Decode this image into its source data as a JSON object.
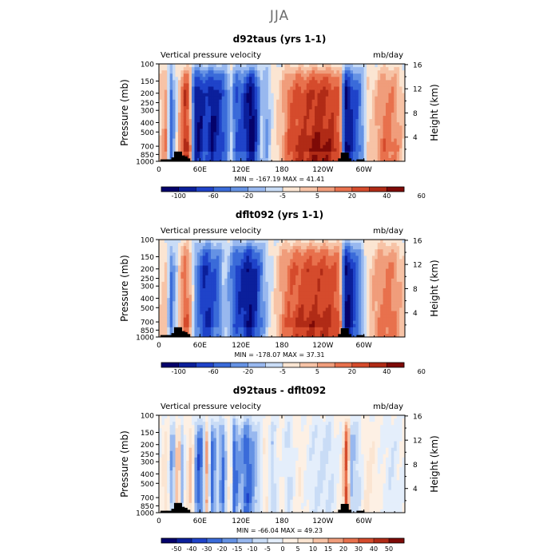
{
  "page": {
    "title": "JJA"
  },
  "colors": {
    "anomaly_palette": [
      "#05026b",
      "#0b1f9b",
      "#1f43c9",
      "#3a6bd9",
      "#6592e4",
      "#98b8ef",
      "#c9dcf6",
      "#fbe5d2",
      "#f7c3a6",
      "#f09d7b",
      "#e8714d",
      "#d54b2c",
      "#b02b16",
      "#7e0a07"
    ],
    "diff_palette": [
      "#05026b",
      "#0b1f9b",
      "#1f43c9",
      "#3a6bd9",
      "#6592e4",
      "#98b8ef",
      "#c9dcf6",
      "#e4eefb",
      "#fdf0e4",
      "#fbe5d2",
      "#f7c3a6",
      "#f09d7b",
      "#e8714d",
      "#d54b2c",
      "#b02b16",
      "#7e0a07"
    ],
    "topography": "#000000"
  },
  "chart_data": [
    {
      "type": "heatmap",
      "title": "d92taus (yrs 1-1)",
      "left_label": "Vertical pressure velocity",
      "units": "mb/day",
      "ylabel": "Pressure (mb)",
      "ylabel_right": "Height (km)",
      "x_range": [
        0,
        360
      ],
      "x_ticks": [
        {
          "lon": 0,
          "label": "0"
        },
        {
          "lon": 60,
          "label": "60E"
        },
        {
          "lon": 120,
          "label": "120E"
        },
        {
          "lon": 180,
          "label": "180"
        },
        {
          "lon": 240,
          "label": "120W"
        },
        {
          "lon": 300,
          "label": "60W"
        }
      ],
      "y_range_mb": [
        1000,
        100
      ],
      "y_ticks": [
        100,
        150,
        200,
        250,
        300,
        400,
        500,
        700,
        850,
        1000
      ],
      "height_ticks": [
        {
          "km": 16,
          "label": "16"
        },
        {
          "km": 12,
          "label": "12"
        },
        {
          "km": 8,
          "label": "8"
        },
        {
          "km": 4,
          "label": "4"
        }
      ],
      "stats": "MIN = -167.19   MAX =  41.41",
      "colorbar_labels": [
        "-100",
        "-60",
        "-20",
        "-5",
        "5",
        "20",
        "40",
        "60"
      ],
      "palette": "anomaly_palette",
      "lon_profile": [
        [
          0,
          0.1
        ],
        [
          10,
          0.35
        ],
        [
          18,
          -0.5
        ],
        [
          25,
          -0.1
        ],
        [
          32,
          0.4
        ],
        [
          40,
          0.75
        ],
        [
          46,
          0.3
        ],
        [
          52,
          -0.75
        ],
        [
          60,
          -0.85
        ],
        [
          68,
          -0.6
        ],
        [
          78,
          -0.85
        ],
        [
          88,
          -0.7
        ],
        [
          100,
          -0.45
        ],
        [
          106,
          -0.15
        ],
        [
          112,
          -0.6
        ],
        [
          120,
          -0.55
        ],
        [
          128,
          -0.75
        ],
        [
          136,
          -0.95
        ],
        [
          145,
          -0.55
        ],
        [
          150,
          -0.15
        ],
        [
          158,
          -0.3
        ],
        [
          165,
          0.0
        ],
        [
          172,
          0.1
        ],
        [
          180,
          0.25
        ],
        [
          190,
          0.5
        ],
        [
          200,
          0.6
        ],
        [
          215,
          0.65
        ],
        [
          230,
          0.75
        ],
        [
          250,
          0.7
        ],
        [
          265,
          0.55
        ],
        [
          272,
          -0.9
        ],
        [
          280,
          -0.75
        ],
        [
          290,
          -0.55
        ],
        [
          298,
          -0.3
        ],
        [
          305,
          0.1
        ],
        [
          318,
          0.25
        ],
        [
          330,
          0.45
        ],
        [
          345,
          0.4
        ],
        [
          360,
          0.1
        ]
      ],
      "topography": [
        [
          8,
          0.02
        ],
        [
          16,
          0.02
        ],
        [
          24,
          0.04
        ],
        [
          28,
          0.1
        ],
        [
          32,
          0.06
        ],
        [
          36,
          0.05
        ],
        [
          40,
          0.03
        ],
        [
          268,
          0.03
        ],
        [
          272,
          0.09
        ],
        [
          276,
          0.03
        ],
        [
          295,
          0.02
        ]
      ]
    },
    {
      "type": "heatmap",
      "title": "dflt092 (yrs 1-1)",
      "left_label": "Vertical pressure velocity",
      "units": "mb/day",
      "ylabel": "Pressure (mb)",
      "ylabel_right": "Height (km)",
      "x_range": [
        0,
        360
      ],
      "x_ticks": [
        {
          "lon": 0,
          "label": "0"
        },
        {
          "lon": 60,
          "label": "60E"
        },
        {
          "lon": 120,
          "label": "120E"
        },
        {
          "lon": 180,
          "label": "180"
        },
        {
          "lon": 240,
          "label": "120W"
        },
        {
          "lon": 300,
          "label": "60W"
        }
      ],
      "y_range_mb": [
        1000,
        100
      ],
      "y_ticks": [
        100,
        150,
        200,
        250,
        300,
        400,
        500,
        700,
        850,
        1000
      ],
      "height_ticks": [
        {
          "km": 16,
          "label": "16"
        },
        {
          "km": 12,
          "label": "12"
        },
        {
          "km": 8,
          "label": "8"
        },
        {
          "km": 4,
          "label": "4"
        }
      ],
      "stats": "MIN = -178.07   MAX =  37.31",
      "colorbar_labels": [
        "-100",
        "-60",
        "-20",
        "-5",
        "5",
        "20",
        "40",
        "60"
      ],
      "palette": "anomaly_palette",
      "lon_profile": [
        [
          0,
          0.1
        ],
        [
          10,
          0.2
        ],
        [
          18,
          -0.45
        ],
        [
          25,
          -0.15
        ],
        [
          32,
          0.3
        ],
        [
          40,
          0.55
        ],
        [
          46,
          0.25
        ],
        [
          54,
          -0.35
        ],
        [
          60,
          -0.55
        ],
        [
          68,
          -0.75
        ],
        [
          78,
          -0.6
        ],
        [
          88,
          -0.45
        ],
        [
          96,
          -0.1
        ],
        [
          104,
          -0.3
        ],
        [
          112,
          -0.6
        ],
        [
          122,
          -0.7
        ],
        [
          132,
          -0.85
        ],
        [
          142,
          -0.7
        ],
        [
          152,
          -0.35
        ],
        [
          160,
          -0.1
        ],
        [
          168,
          0.05
        ],
        [
          178,
          0.3
        ],
        [
          190,
          0.5
        ],
        [
          205,
          0.6
        ],
        [
          220,
          0.65
        ],
        [
          240,
          0.65
        ],
        [
          255,
          0.6
        ],
        [
          265,
          0.5
        ],
        [
          272,
          -0.9
        ],
        [
          280,
          -0.8
        ],
        [
          290,
          -0.5
        ],
        [
          300,
          -0.15
        ],
        [
          310,
          0.2
        ],
        [
          325,
          0.4
        ],
        [
          340,
          0.45
        ],
        [
          360,
          0.15
        ]
      ],
      "topography": [
        [
          8,
          0.02
        ],
        [
          16,
          0.02
        ],
        [
          24,
          0.04
        ],
        [
          28,
          0.1
        ],
        [
          32,
          0.06
        ],
        [
          36,
          0.05
        ],
        [
          40,
          0.03
        ],
        [
          268,
          0.03
        ],
        [
          272,
          0.09
        ],
        [
          276,
          0.03
        ],
        [
          295,
          0.02
        ]
      ]
    },
    {
      "type": "heatmap",
      "title": "d92taus - dflt092",
      "left_label": "Vertical pressure velocity",
      "units": "mb/day",
      "ylabel": "Pressure (mb)",
      "ylabel_right": "Height (km)",
      "x_range": [
        0,
        360
      ],
      "x_ticks": [
        {
          "lon": 0,
          "label": "0"
        },
        {
          "lon": 60,
          "label": "60E"
        },
        {
          "lon": 120,
          "label": "120E"
        },
        {
          "lon": 180,
          "label": "180"
        },
        {
          "lon": 240,
          "label": "120W"
        },
        {
          "lon": 300,
          "label": "60W"
        }
      ],
      "y_range_mb": [
        1000,
        100
      ],
      "y_ticks": [
        100,
        150,
        200,
        250,
        300,
        400,
        500,
        700,
        850,
        1000
      ],
      "height_ticks": [
        {
          "km": 16,
          "label": "16"
        },
        {
          "km": 12,
          "label": "12"
        },
        {
          "km": 8,
          "label": "8"
        },
        {
          "km": 4,
          "label": "4"
        }
      ],
      "stats": "MIN = -66.04   MAX =  49.23",
      "colorbar_labels": [
        "-50",
        "-40",
        "-30",
        "-20",
        "-15",
        "-10",
        "-5",
        "0",
        "5",
        "10",
        "15",
        "20",
        "30",
        "40",
        "50"
      ],
      "palette": "diff_palette",
      "lon_profile": [
        [
          0,
          0.0
        ],
        [
          12,
          0.2
        ],
        [
          20,
          -0.5
        ],
        [
          28,
          0.5
        ],
        [
          34,
          -0.3
        ],
        [
          40,
          0.1
        ],
        [
          48,
          0.3
        ],
        [
          56,
          -0.6
        ],
        [
          64,
          -0.45
        ],
        [
          70,
          0.35
        ],
        [
          78,
          -0.55
        ],
        [
          86,
          -0.2
        ],
        [
          94,
          -0.5
        ],
        [
          104,
          0.2
        ],
        [
          110,
          -0.55
        ],
        [
          120,
          -0.3
        ],
        [
          128,
          -0.6
        ],
        [
          136,
          -0.45
        ],
        [
          146,
          -0.2
        ],
        [
          156,
          0.15
        ],
        [
          166,
          -0.2
        ],
        [
          178,
          0.05
        ],
        [
          190,
          -0.15
        ],
        [
          205,
          0.1
        ],
        [
          225,
          -0.1
        ],
        [
          250,
          -0.15
        ],
        [
          268,
          0.05
        ],
        [
          275,
          0.7
        ],
        [
          282,
          -0.3
        ],
        [
          292,
          -0.15
        ],
        [
          305,
          0.15
        ],
        [
          320,
          0.05
        ],
        [
          340,
          -0.1
        ],
        [
          360,
          0.0
        ]
      ],
      "topography": [
        [
          8,
          0.02
        ],
        [
          16,
          0.02
        ],
        [
          24,
          0.04
        ],
        [
          28,
          0.1
        ],
        [
          32,
          0.06
        ],
        [
          36,
          0.05
        ],
        [
          40,
          0.03
        ],
        [
          268,
          0.03
        ],
        [
          272,
          0.09
        ],
        [
          276,
          0.03
        ],
        [
          295,
          0.02
        ]
      ]
    }
  ]
}
